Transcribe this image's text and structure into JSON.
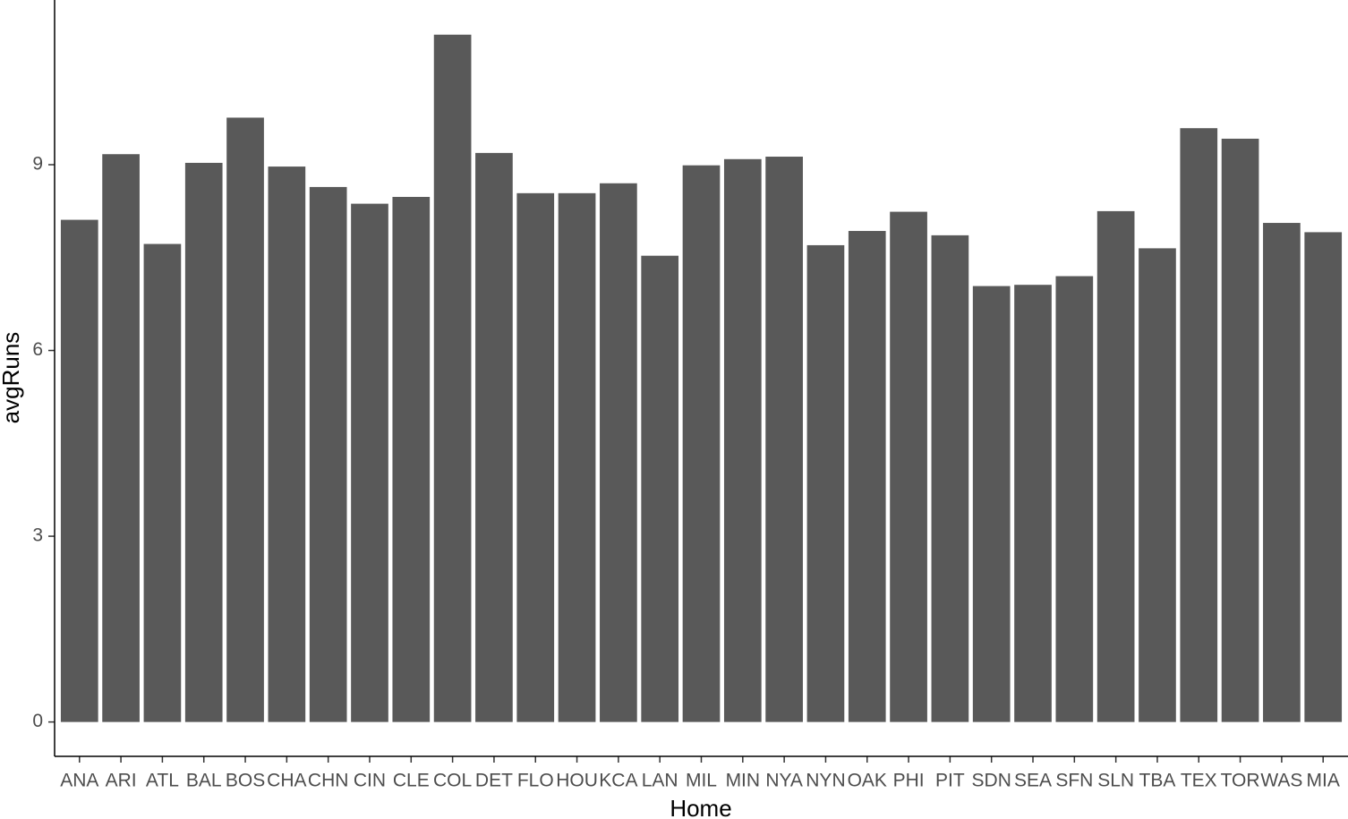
{
  "chart_data": {
    "type": "bar",
    "x_label": "Home",
    "y_label": "avgRuns",
    "categories": [
      "ANA",
      "ARI",
      "ATL",
      "BAL",
      "BOS",
      "CHA",
      "CHN",
      "CIN",
      "CLE",
      "COL",
      "DET",
      "FLO",
      "HOU",
      "KCA",
      "LAN",
      "MIL",
      "MIN",
      "NYA",
      "NYN",
      "OAK",
      "PHI",
      "PIT",
      "SDN",
      "SEA",
      "SFN",
      "SLN",
      "TBA",
      "TEX",
      "TOR",
      "WAS",
      "MIA"
    ],
    "values": [
      8.11,
      9.17,
      7.72,
      9.03,
      9.76,
      8.97,
      8.64,
      8.37,
      8.48,
      11.1,
      9.19,
      8.54,
      8.54,
      8.7,
      7.53,
      8.99,
      9.09,
      9.13,
      7.7,
      7.93,
      8.24,
      7.86,
      7.04,
      7.06,
      7.2,
      8.25,
      7.65,
      9.59,
      9.42,
      8.06,
      7.91
    ],
    "color": "#595959",
    "ylim": [
      -0.555,
      11.66
    ],
    "yticks": [
      0,
      3,
      6,
      9
    ],
    "grid": false
  }
}
